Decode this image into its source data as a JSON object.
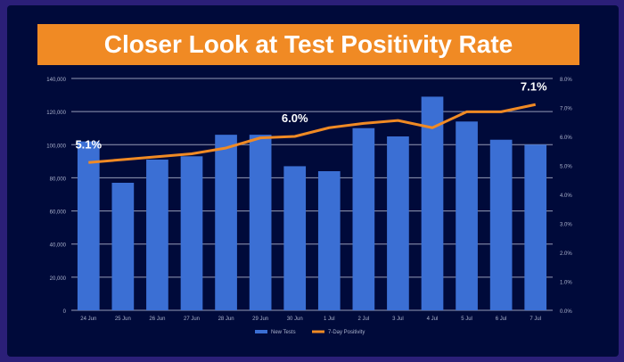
{
  "slide": {
    "title": "Closer Look at Test Positivity Rate"
  },
  "colors": {
    "bar": "#3b6fd4",
    "line": "#f08a24",
    "grid": "#c7cce0",
    "background": "#000a3a",
    "banner": "#f08a24"
  },
  "chart_data": {
    "type": "bar",
    "categories": [
      "24 Jun",
      "25 Jun",
      "26 Jun",
      "27 Jun",
      "28 Jun",
      "29 Jun",
      "30 Jun",
      "1 Jul",
      "2 Jul",
      "3 Jul",
      "4 Jul",
      "5 Jul",
      "6 Jul",
      "7 Jul"
    ],
    "series": [
      {
        "name": "New Tests",
        "type": "bar",
        "axis": "left",
        "values": [
          102000,
          77000,
          91000,
          93000,
          106000,
          106000,
          87000,
          84000,
          110000,
          105000,
          129000,
          114000,
          103000,
          100000
        ]
      },
      {
        "name": "7-Day Positivity",
        "type": "line",
        "axis": "right",
        "values": [
          5.1,
          5.2,
          5.3,
          5.4,
          5.6,
          5.95,
          6.0,
          6.3,
          6.45,
          6.55,
          6.3,
          6.85,
          6.85,
          7.1
        ]
      }
    ],
    "annotations": [
      {
        "label": "5.1%",
        "index": 0
      },
      {
        "label": "6.0%",
        "index": 6
      },
      {
        "label": "7.1%",
        "index": 13
      }
    ],
    "ylim_left": [
      0,
      140000
    ],
    "ylim_right": [
      0,
      8
    ],
    "left_ticks": [
      "0",
      "20,000",
      "40,000",
      "60,000",
      "80,000",
      "100,000",
      "120,000",
      "140,000"
    ],
    "right_ticks": [
      "0.0%",
      "1.0%",
      "2.0%",
      "3.0%",
      "4.0%",
      "5.0%",
      "6.0%",
      "7.0%",
      "8.0%"
    ],
    "legend_position": "bottom",
    "grid": true
  }
}
